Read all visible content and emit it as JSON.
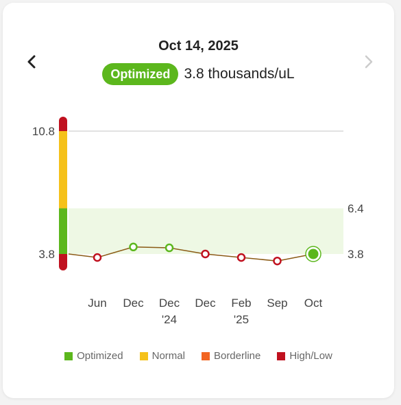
{
  "header": {
    "date": "Oct 14, 2025",
    "status_badge": "Optimized",
    "reading": "3.8 thousands/uL"
  },
  "nav": {
    "prev_icon": "chevron-left-icon",
    "next_icon": "chevron-right-icon"
  },
  "colors": {
    "optimized": "#5cb71d",
    "normal": "#f5c11a",
    "borderline": "#f26522",
    "high_low": "#c0111f",
    "line": "#8a5a14",
    "band": "#eef8e4"
  },
  "legend": [
    {
      "label": "Optimized",
      "color": "#5cb71d"
    },
    {
      "label": "Normal",
      "color": "#f5c11a"
    },
    {
      "label": "Borderline",
      "color": "#f26522"
    },
    {
      "label": "High/Low",
      "color": "#c0111f"
    }
  ],
  "chart_data": {
    "type": "line",
    "title": "",
    "xlabel": "",
    "ylabel": "",
    "categories": [
      "Jun",
      "Dec",
      "Dec\n'24",
      "Dec",
      "Feb\n'25",
      "Sep",
      "Oct"
    ],
    "series": [
      {
        "values": [
          3.6,
          4.2,
          4.15,
          3.8,
          3.6,
          3.4,
          3.8
        ],
        "status": [
          "High/Low",
          "Optimized",
          "Optimized",
          "High/Low",
          "High/Low",
          "High/Low",
          "Optimized"
        ]
      }
    ],
    "y_ticks_left": [
      3.8,
      10.8
    ],
    "y_ticks_right": [
      3.8,
      6.4
    ],
    "optimized_range": [
      3.8,
      6.4
    ],
    "ylim": [
      3.2,
      11.4
    ],
    "grid": false
  }
}
